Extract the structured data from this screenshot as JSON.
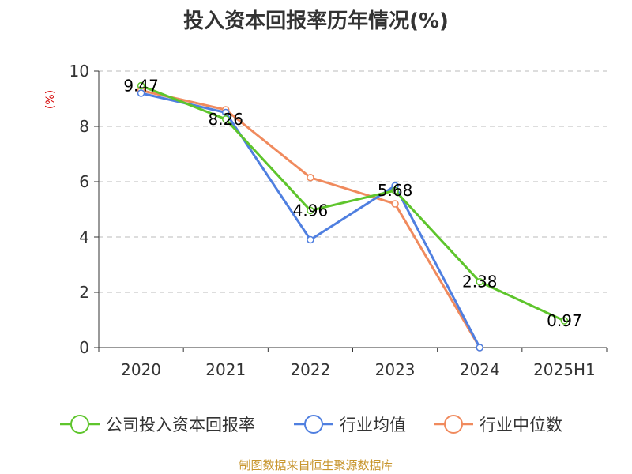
{
  "title": "投入资本回报率历年情况(%)",
  "source": "制图数据来自恒生聚源数据库",
  "colors": {
    "axis": "#333333",
    "grid": "#bbbbbb",
    "ylabel": "#d40000",
    "source": "#c8962e"
  },
  "chart_data": {
    "type": "line",
    "title": "投入资本回报率历年情况(%)",
    "xlabel": "",
    "ylabel": "(%)",
    "ylim": [
      0,
      10
    ],
    "yticks": [
      "0",
      "2",
      "4",
      "6",
      "8",
      "10"
    ],
    "grid": true,
    "legend_position": "bottom",
    "categories": [
      "2020",
      "2021",
      "2022",
      "2023",
      "2024",
      "2025H1"
    ],
    "series": [
      {
        "name": "公司投入资本回报率",
        "color": "#5ec52c",
        "values": [
          9.47,
          8.26,
          4.96,
          5.68,
          2.38,
          0.97
        ],
        "labels": [
          "9.47",
          "8.26",
          "4.96",
          "5.68",
          "2.38",
          "0.97"
        ]
      },
      {
        "name": "行业均值",
        "color": "#4f7fe0",
        "values": [
          9.2,
          8.5,
          3.9,
          5.85,
          0.0,
          null
        ]
      },
      {
        "name": "行业中位数",
        "color": "#f08a5d",
        "values": [
          9.3,
          8.6,
          6.15,
          5.2,
          0.0,
          null
        ]
      }
    ]
  }
}
